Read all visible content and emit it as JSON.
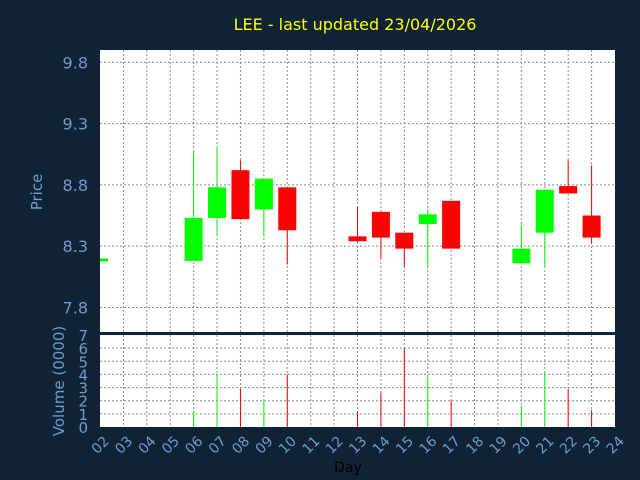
{
  "chart_data": {
    "type": "candlestick",
    "title": "LEE - last updated 23/04/2026",
    "xlabel": "Day",
    "ylabel": "Price",
    "volume_label": "Volume (0000)",
    "x_range": [
      2,
      24
    ],
    "price_ylim": [
      7.6,
      9.9
    ],
    "price_ticks": [
      7.8,
      8.3,
      8.8,
      9.3,
      9.8
    ],
    "volume_ylim": [
      0,
      7
    ],
    "volume_ticks": [
      0,
      1,
      2,
      3,
      4,
      5,
      6,
      7
    ],
    "x_tick_labels": [
      "02",
      "03",
      "04",
      "05",
      "06",
      "07",
      "08",
      "09",
      "10",
      "11",
      "12",
      "13",
      "14",
      "15",
      "16",
      "17",
      "18",
      "19",
      "20",
      "21",
      "22",
      "23",
      "24"
    ],
    "grid": true,
    "colors": {
      "background": "#0f2236",
      "plot": "#ffffff",
      "up": "#00ff00",
      "down": "#ff0000",
      "title": "#ffff00",
      "axis_text": "#6e9ccd",
      "ylabel": "#6e9ccd",
      "xlabel": "#000000"
    },
    "candles": [
      {
        "day": 2,
        "open": 8.2,
        "high": 8.2,
        "low": 8.2,
        "close": 8.2,
        "volume": 0
      },
      {
        "day": 6,
        "open": 8.18,
        "high": 9.07,
        "low": 8.18,
        "close": 8.53,
        "volume": 1.2
      },
      {
        "day": 7,
        "open": 8.53,
        "high": 9.1,
        "low": 8.4,
        "close": 8.78,
        "volume": 4.0
      },
      {
        "day": 8,
        "open": 8.92,
        "high": 9.0,
        "low": 8.52,
        "close": 8.52,
        "volume": 2.9
      },
      {
        "day": 9,
        "open": 8.6,
        "high": 8.86,
        "low": 8.38,
        "close": 8.85,
        "volume": 2.0
      },
      {
        "day": 10,
        "open": 8.78,
        "high": 8.78,
        "low": 8.15,
        "close": 8.43,
        "volume": 4.0
      },
      {
        "day": 13,
        "open": 8.38,
        "high": 8.62,
        "low": 8.33,
        "close": 8.34,
        "volume": 1.2
      },
      {
        "day": 14,
        "open": 8.58,
        "high": 8.58,
        "low": 8.2,
        "close": 8.37,
        "volume": 2.6
      },
      {
        "day": 15,
        "open": 8.41,
        "high": 8.41,
        "low": 8.13,
        "close": 8.28,
        "volume": 6.0
      },
      {
        "day": 16,
        "open": 8.48,
        "high": 8.6,
        "low": 8.13,
        "close": 8.56,
        "volume": 3.8
      },
      {
        "day": 17,
        "open": 8.67,
        "high": 8.67,
        "low": 8.28,
        "close": 8.28,
        "volume": 2.0
      },
      {
        "day": 20,
        "open": 8.16,
        "high": 8.47,
        "low": 8.16,
        "close": 8.28,
        "volume": 1.6
      },
      {
        "day": 21,
        "open": 8.41,
        "high": 8.76,
        "low": 8.13,
        "close": 8.76,
        "volume": 4.2
      },
      {
        "day": 22,
        "open": 8.79,
        "high": 9.0,
        "low": 8.73,
        "close": 8.73,
        "volume": 2.9
      },
      {
        "day": 23,
        "open": 8.55,
        "high": 8.96,
        "low": 8.32,
        "close": 8.37,
        "volume": 1.3
      }
    ]
  }
}
